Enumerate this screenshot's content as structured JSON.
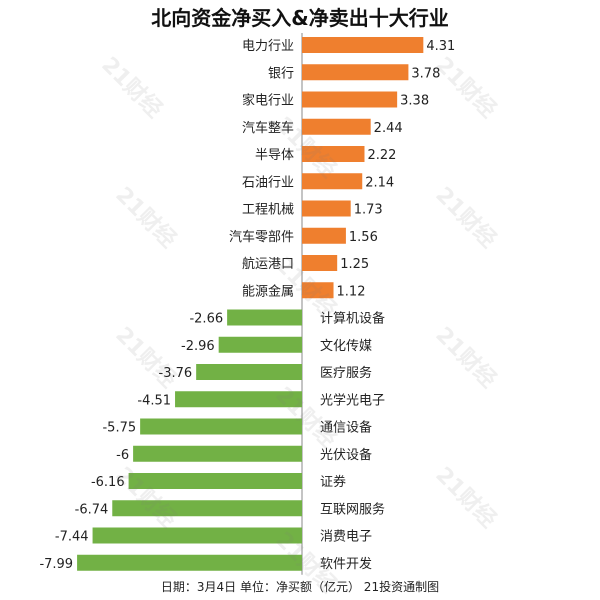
{
  "chart_data": {
    "type": "bar",
    "orientation": "horizontal",
    "title": "北向资金净买入&净卖出十大行业",
    "categories": [
      "电力行业",
      "银行",
      "家电行业",
      "汽车整车",
      "半导体",
      "石油行业",
      "工程机械",
      "汽车零部件",
      "航运港口",
      "能源金属",
      "计算机设备",
      "文化传媒",
      "医疗服务",
      "光学光电子",
      "通信设备",
      "光伏设备",
      "证券",
      "互联网服务",
      "消费电子",
      "软件开发"
    ],
    "values": [
      4.31,
      3.78,
      3.38,
      2.44,
      2.22,
      2.14,
      1.73,
      1.56,
      1.25,
      1.12,
      -2.66,
      -2.96,
      -3.76,
      -4.51,
      -5.75,
      -6,
      -6.16,
      -6.74,
      -7.44,
      -7.99
    ],
    "value_labels": [
      "4.31",
      "3.78",
      "3.38",
      "2.44",
      "2.22",
      "2.14",
      "1.73",
      "1.56",
      "1.25",
      "1.12",
      "-2.66",
      "-2.96",
      "-3.76",
      "-4.51",
      "-5.75",
      "-6",
      "-6.16",
      "-6.74",
      "-7.44",
      "-7.99"
    ],
    "colors": {
      "positive": "#ef7f2e",
      "negative": "#72b145",
      "axis": "#888888"
    },
    "grid": false,
    "legend": "none"
  },
  "footer": "日期：3月4日 单位：净买额（亿元） 21投资通制图",
  "watermark": "21财经"
}
